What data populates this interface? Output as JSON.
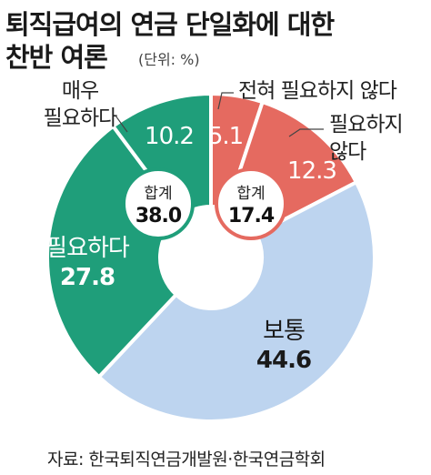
{
  "title": {
    "line1": "퇴직급여의 연금 단일화에 대한",
    "line2": "찬반 여론",
    "unit": "(단위: %)"
  },
  "source": "자료: 한국퇴직연금개발원·한국연금학회",
  "colors": {
    "green": "#1f9e7a",
    "red": "#e56a60",
    "blue": "#bdd4ef",
    "text_dark": "#1a1a1a"
  },
  "chart_data": {
    "type": "pie",
    "categories": [
      "전혀 필요하지 않다",
      "필요하지 않다",
      "보통",
      "필요하다",
      "매우 필요하다"
    ],
    "values": [
      5.1,
      12.3,
      44.6,
      27.8,
      10.2
    ],
    "slice_labels": [
      "5.1",
      "12.3",
      "보통\n44.6",
      "필요하다\n27.8",
      "10.2"
    ],
    "totals": [
      {
        "label": "합계",
        "value": "38.0"
      },
      {
        "label": "합계",
        "value": "17.4"
      }
    ],
    "callouts": [
      "매우\n필요하다",
      "전혀 필요하지 않다",
      "필요하지\n않다"
    ]
  }
}
